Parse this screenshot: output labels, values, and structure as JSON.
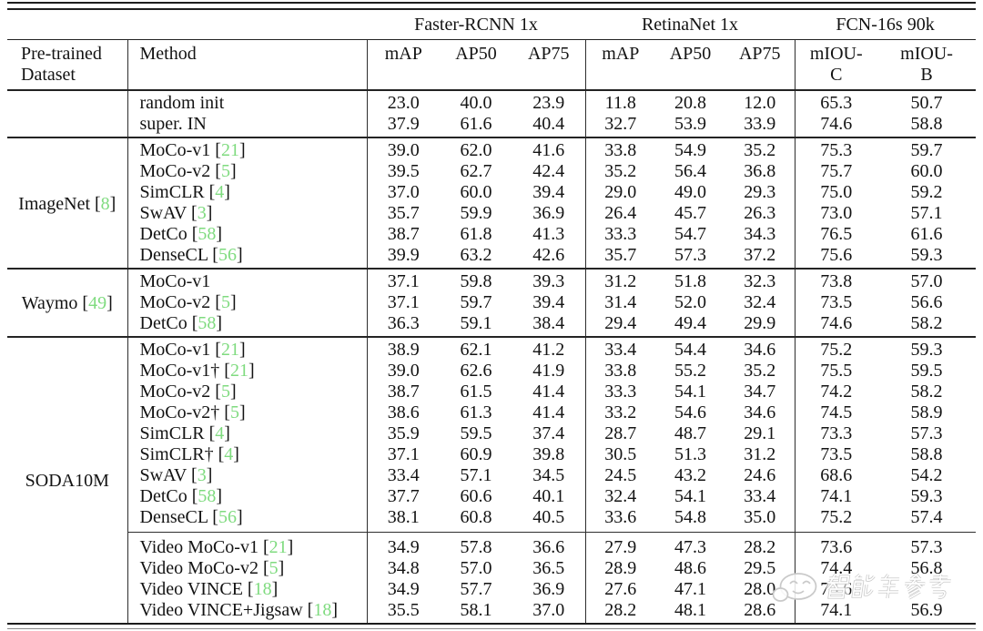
{
  "table": {
    "col_groups": [
      {
        "label": "Faster-RCNN 1x",
        "span": 3
      },
      {
        "label": "RetinaNet 1x",
        "span": 3
      },
      {
        "label": "FCN-16s 90k",
        "span": 2
      }
    ],
    "header": {
      "dataset": "Pre-trained Dataset",
      "method": "Method",
      "cols": [
        "mAP",
        "AP50",
        "AP75",
        "mAP",
        "AP50",
        "AP75",
        "mIOU-C",
        "mIOU-B"
      ]
    },
    "groups": [
      {
        "dataset": {
          "name": "",
          "cite": null
        },
        "rows": [
          {
            "m": "random init",
            "c": null,
            "v": [
              "23.0",
              "40.0",
              "23.9",
              "11.8",
              "20.8",
              "12.0",
              "65.3",
              "50.7"
            ]
          },
          {
            "m": "super. IN",
            "c": null,
            "v": [
              "37.9",
              "61.6",
              "40.4",
              "32.7",
              "53.9",
              "33.9",
              "74.6",
              "58.8"
            ]
          }
        ]
      },
      {
        "dataset": {
          "name": "ImageNet",
          "cite": "8"
        },
        "rows": [
          {
            "m": "MoCo-v1",
            "c": "21",
            "v": [
              "39.0",
              "62.0",
              "41.6",
              "33.8",
              "54.9",
              "35.2",
              "75.3",
              "59.7"
            ]
          },
          {
            "m": "MoCo-v2",
            "c": "5",
            "v": [
              "39.5",
              "62.7",
              "42.4",
              "35.2",
              "56.4",
              "36.8",
              "75.7",
              "60.0"
            ]
          },
          {
            "m": "SimCLR",
            "c": "4",
            "v": [
              "37.0",
              "60.0",
              "39.4",
              "29.0",
              "49.0",
              "29.3",
              "75.0",
              "59.2"
            ]
          },
          {
            "m": "SwAV",
            "c": "3",
            "v": [
              "35.7",
              "59.9",
              "36.9",
              "26.4",
              "45.7",
              "26.3",
              "73.0",
              "57.1"
            ]
          },
          {
            "m": "DetCo",
            "c": "58",
            "v": [
              "38.7",
              "61.8",
              "41.3",
              "33.3",
              "54.7",
              "34.3",
              "76.5",
              "61.6"
            ]
          },
          {
            "m": "DenseCL",
            "c": "56",
            "v": [
              "39.9",
              "63.2",
              "42.6",
              "35.7",
              "57.3",
              "37.2",
              "75.6",
              "59.3"
            ]
          }
        ]
      },
      {
        "dataset": {
          "name": "Waymo",
          "cite": "49"
        },
        "rows": [
          {
            "m": "MoCo-v1",
            "c": null,
            "v": [
              "37.1",
              "59.8",
              "39.3",
              "31.2",
              "51.8",
              "32.3",
              "73.8",
              "57.0"
            ]
          },
          {
            "m": "MoCo-v2",
            "c": "5",
            "v": [
              "37.1",
              "59.7",
              "39.4",
              "31.4",
              "52.0",
              "32.4",
              "73.5",
              "56.6"
            ]
          },
          {
            "m": "DetCo",
            "c": "58",
            "v": [
              "36.3",
              "59.1",
              "38.4",
              "29.4",
              "49.4",
              "29.9",
              "74.6",
              "58.2"
            ]
          }
        ]
      },
      {
        "dataset": {
          "name": "SODA10M",
          "cite": null
        },
        "subsep_after": 8,
        "rows": [
          {
            "m": "MoCo-v1",
            "c": "21",
            "v": [
              "38.9",
              "62.1",
              "41.2",
              "33.4",
              "54.4",
              "34.6",
              "75.2",
              "59.3"
            ]
          },
          {
            "m": "MoCo-v1†",
            "c": "21",
            "v": [
              "39.0",
              "62.6",
              "41.9",
              "33.8",
              "55.2",
              "35.2",
              "75.5",
              "59.5"
            ]
          },
          {
            "m": "MoCo-v2",
            "c": "5",
            "v": [
              "38.7",
              "61.5",
              "41.4",
              "33.3",
              "54.1",
              "34.7",
              "74.2",
              "58.2"
            ]
          },
          {
            "m": "MoCo-v2†",
            "c": "5",
            "v": [
              "38.6",
              "61.3",
              "41.4",
              "33.2",
              "54.6",
              "34.6",
              "74.5",
              "58.9"
            ]
          },
          {
            "m": "SimCLR",
            "c": "4",
            "v": [
              "35.9",
              "59.5",
              "37.4",
              "28.7",
              "48.7",
              "29.1",
              "73.3",
              "57.3"
            ]
          },
          {
            "m": "SimCLR†",
            "c": "4",
            "v": [
              "37.1",
              "60.9",
              "39.8",
              "30.5",
              "51.3",
              "31.2",
              "73.5",
              "58.8"
            ]
          },
          {
            "m": "SwAV",
            "c": "3",
            "v": [
              "33.4",
              "57.1",
              "34.5",
              "24.5",
              "43.2",
              "24.6",
              "68.6",
              "54.2"
            ]
          },
          {
            "m": "DetCo",
            "c": "58",
            "v": [
              "37.7",
              "60.6",
              "40.1",
              "32.4",
              "54.1",
              "33.4",
              "74.1",
              "59.3"
            ]
          },
          {
            "m": "DenseCL",
            "c": "56",
            "v": [
              "38.1",
              "60.8",
              "40.5",
              "33.6",
              "54.8",
              "35.0",
              "75.2",
              "57.4"
            ]
          },
          {
            "m": "Video MoCo-v1",
            "c": "21",
            "v": [
              "34.9",
              "57.8",
              "36.6",
              "27.9",
              "47.3",
              "28.2",
              "73.6",
              "57.3"
            ]
          },
          {
            "m": "Video MoCo-v2",
            "c": "5",
            "v": [
              "34.8",
              "57.0",
              "36.5",
              "28.9",
              "48.6",
              "29.5",
              "74.4",
              "56.8"
            ]
          },
          {
            "m": "Video VINCE",
            "c": "18",
            "v": [
              "34.9",
              "57.7",
              "36.9",
              "27.6",
              "47.1",
              "28.0",
              "73.6",
              ""
            ]
          },
          {
            "m": "Video VINCE+Jigsaw",
            "c": "18",
            "v": [
              "35.5",
              "58.1",
              "37.0",
              "28.2",
              "48.1",
              "28.6",
              "74.1",
              "56.9"
            ]
          }
        ]
      }
    ]
  },
  "watermark": {
    "text": "智能车参考"
  },
  "colors": {
    "cite_green": "#7fdb7f",
    "watermark_gray": "#c9c9c9"
  }
}
